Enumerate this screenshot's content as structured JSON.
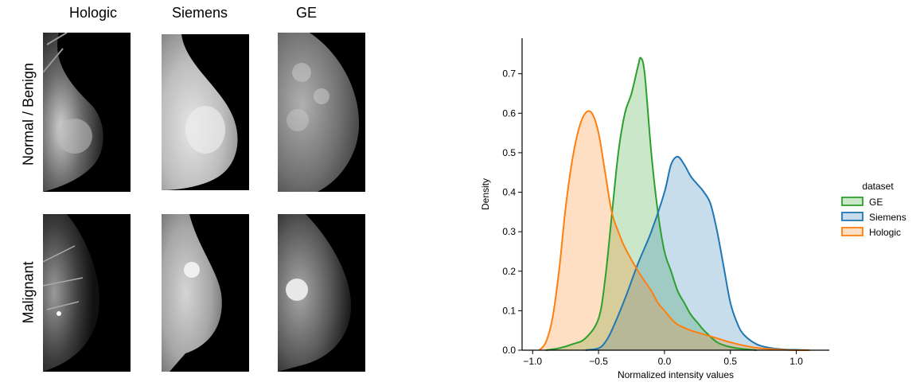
{
  "image_grid": {
    "columns": [
      "Hologic",
      "Siemens",
      "GE"
    ],
    "rows": [
      "Normal / Benign",
      "Malignant"
    ]
  },
  "chart_data": {
    "type": "area",
    "xlabel": "Normalized intensity values",
    "ylabel": "Density",
    "xlim": [
      -1.08,
      1.25
    ],
    "ylim": [
      0,
      0.79
    ],
    "xticks": [
      -1.0,
      -0.5,
      0.0,
      0.5,
      1.0
    ],
    "xtick_labels": [
      "−1.0",
      "−0.5",
      "0.0",
      "0.5",
      "1.0"
    ],
    "yticks": [
      0.0,
      0.1,
      0.2,
      0.3,
      0.4,
      0.5,
      0.6,
      0.7
    ],
    "ytick_labels": [
      "0.0",
      "0.1",
      "0.2",
      "0.3",
      "0.4",
      "0.5",
      "0.6",
      "0.7"
    ],
    "legend_title": "dataset",
    "legend_position": "right",
    "series": [
      {
        "name": "GE",
        "color": "#2ca02c",
        "x": [
          -0.9,
          -0.8,
          -0.7,
          -0.6,
          -0.5,
          -0.45,
          -0.4,
          -0.35,
          -0.3,
          -0.25,
          -0.2,
          -0.18,
          -0.15,
          -0.1,
          -0.05,
          0.0,
          0.05,
          0.1,
          0.15,
          0.2,
          0.25,
          0.3,
          0.4,
          0.5,
          0.6,
          0.7
        ],
        "y": [
          0.0,
          0.005,
          0.015,
          0.03,
          0.08,
          0.18,
          0.34,
          0.5,
          0.6,
          0.65,
          0.72,
          0.74,
          0.7,
          0.5,
          0.35,
          0.25,
          0.2,
          0.15,
          0.12,
          0.09,
          0.07,
          0.05,
          0.02,
          0.008,
          0.003,
          0.0
        ]
      },
      {
        "name": "Siemens",
        "color": "#1f77b4",
        "x": [
          -0.6,
          -0.5,
          -0.45,
          -0.4,
          -0.3,
          -0.2,
          -0.1,
          0.0,
          0.05,
          0.1,
          0.15,
          0.2,
          0.25,
          0.3,
          0.35,
          0.4,
          0.45,
          0.5,
          0.55,
          0.6,
          0.7,
          0.8,
          0.9,
          1.0,
          1.1
        ],
        "y": [
          0.0,
          0.005,
          0.02,
          0.05,
          0.13,
          0.22,
          0.3,
          0.4,
          0.47,
          0.49,
          0.47,
          0.44,
          0.42,
          0.4,
          0.37,
          0.3,
          0.21,
          0.12,
          0.07,
          0.04,
          0.015,
          0.006,
          0.002,
          0.001,
          0.0
        ]
      },
      {
        "name": "Hologic",
        "color": "#ff7f0e",
        "x": [
          -0.95,
          -0.9,
          -0.85,
          -0.8,
          -0.75,
          -0.7,
          -0.65,
          -0.6,
          -0.55,
          -0.5,
          -0.45,
          -0.4,
          -0.35,
          -0.3,
          -0.2,
          -0.1,
          -0.05,
          0.0,
          0.05,
          0.1,
          0.2,
          0.3,
          0.4,
          0.5,
          0.6,
          0.7,
          0.8,
          0.9,
          1.0,
          1.1
        ],
        "y": [
          0.0,
          0.02,
          0.08,
          0.2,
          0.36,
          0.48,
          0.56,
          0.6,
          0.6,
          0.55,
          0.45,
          0.35,
          0.3,
          0.26,
          0.2,
          0.15,
          0.12,
          0.1,
          0.08,
          0.065,
          0.05,
          0.04,
          0.03,
          0.02,
          0.012,
          0.006,
          0.003,
          0.001,
          0.0,
          0.0
        ]
      }
    ]
  },
  "colors": {
    "ge": "#2ca02c",
    "siemens": "#1f77b4",
    "hologic": "#ff7f0e"
  }
}
